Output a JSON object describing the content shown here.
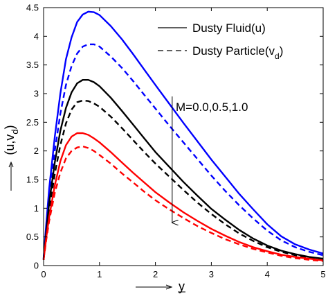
{
  "chart_data": {
    "type": "line",
    "xlabel": "y",
    "ylabel_main": "(u,v",
    "ylabel_sub": "d",
    "ylabel_close": ")",
    "xlim": [
      0,
      5
    ],
    "ylim": [
      0,
      4.5
    ],
    "x_ticks": [
      0,
      1,
      2,
      3,
      4,
      5
    ],
    "x_tick_labels": [
      "0",
      "1",
      "2",
      "3",
      "4",
      "5"
    ],
    "y_ticks": [
      0,
      0.5,
      1,
      1.5,
      2,
      2.5,
      3,
      3.5,
      4,
      4.5
    ],
    "y_tick_labels": [
      "0",
      "0.5",
      "1",
      "1.5",
      "2",
      "2.5",
      "3",
      "3.5",
      "4",
      "4.5"
    ],
    "grid": false,
    "legend": {
      "placement": "top-right",
      "entries": [
        {
          "label_main": "Dusty Fluid(u)",
          "label_sub": "",
          "label_close": "",
          "style": "solid"
        },
        {
          "label_main": "Dusty Particle(v",
          "label_sub": "d",
          "label_close": ")",
          "style": "dashed"
        }
      ]
    },
    "annotation": {
      "text": "M=0.0,0.5,1.0",
      "arrow_x": 2.3,
      "arrow_y_start": 2.95,
      "arrow_y_end": 0.75
    },
    "x": [
      0,
      0.05,
      0.1,
      0.2,
      0.3,
      0.4,
      0.5,
      0.6,
      0.7,
      0.8,
      0.9,
      1.0,
      1.2,
      1.4,
      1.6,
      1.8,
      2.0,
      2.25,
      2.5,
      2.75,
      3.0,
      3.25,
      3.5,
      3.75,
      4.0,
      4.25,
      4.5,
      4.75,
      5.0
    ],
    "series": [
      {
        "color": "#0000ff",
        "style": "solid",
        "values": [
          0.12,
          0.75,
          1.35,
          2.25,
          3.0,
          3.6,
          3.98,
          4.25,
          4.38,
          4.43,
          4.42,
          4.37,
          4.18,
          3.95,
          3.69,
          3.42,
          3.15,
          2.82,
          2.49,
          2.17,
          1.85,
          1.55,
          1.25,
          0.98,
          0.72,
          0.51,
          0.37,
          0.28,
          0.21
        ]
      },
      {
        "color": "#0000ff",
        "style": "dashed",
        "values": [
          0.12,
          0.7,
          1.2,
          2.0,
          2.65,
          3.15,
          3.48,
          3.7,
          3.82,
          3.86,
          3.86,
          3.82,
          3.65,
          3.45,
          3.22,
          2.98,
          2.74,
          2.44,
          2.15,
          1.86,
          1.57,
          1.3,
          1.05,
          0.82,
          0.61,
          0.44,
          0.32,
          0.24,
          0.18
        ]
      },
      {
        "color": "#000000",
        "style": "solid",
        "values": [
          0.1,
          0.6,
          1.1,
          1.8,
          2.35,
          2.75,
          3.02,
          3.18,
          3.24,
          3.24,
          3.2,
          3.13,
          2.93,
          2.7,
          2.46,
          2.22,
          1.98,
          1.72,
          1.46,
          1.22,
          0.99,
          0.8,
          0.62,
          0.47,
          0.35,
          0.26,
          0.2,
          0.15,
          0.12
        ]
      },
      {
        "color": "#000000",
        "style": "dashed",
        "values": [
          0.1,
          0.55,
          0.98,
          1.6,
          2.1,
          2.48,
          2.72,
          2.85,
          2.88,
          2.87,
          2.83,
          2.77,
          2.6,
          2.4,
          2.19,
          1.98,
          1.78,
          1.55,
          1.32,
          1.1,
          0.9,
          0.72,
          0.56,
          0.43,
          0.32,
          0.24,
          0.18,
          0.14,
          0.11
        ]
      },
      {
        "color": "#ff0000",
        "style": "solid",
        "values": [
          0.1,
          0.5,
          0.85,
          1.4,
          1.82,
          2.1,
          2.25,
          2.31,
          2.31,
          2.28,
          2.22,
          2.15,
          1.98,
          1.8,
          1.62,
          1.45,
          1.28,
          1.1,
          0.93,
          0.78,
          0.64,
          0.52,
          0.41,
          0.32,
          0.25,
          0.19,
          0.15,
          0.12,
          0.09
        ]
      },
      {
        "color": "#ff0000",
        "style": "dashed",
        "values": [
          0.1,
          0.46,
          0.78,
          1.27,
          1.62,
          1.87,
          2.0,
          2.06,
          2.08,
          2.05,
          2.0,
          1.93,
          1.78,
          1.61,
          1.45,
          1.29,
          1.14,
          0.98,
          0.83,
          0.69,
          0.57,
          0.46,
          0.37,
          0.29,
          0.23,
          0.17,
          0.13,
          0.1,
          0.08
        ]
      }
    ]
  }
}
